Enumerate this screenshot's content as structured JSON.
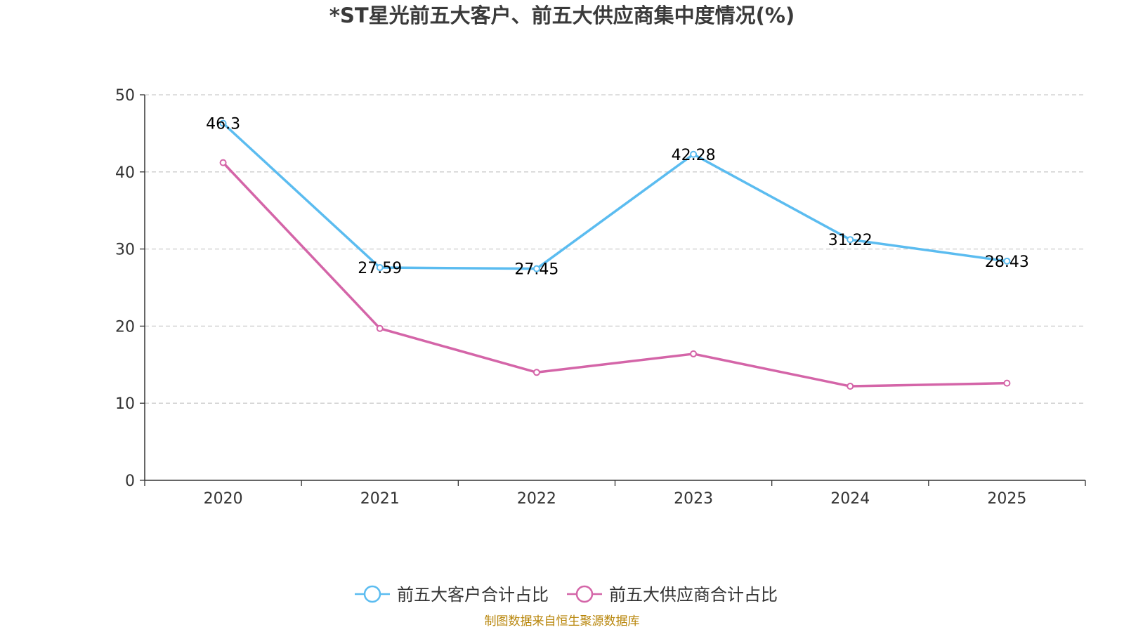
{
  "chart_data": {
    "type": "line",
    "title": "*ST星光前五大客户、前五大供应商集中度情况(%)",
    "categories": [
      "2020",
      "2021",
      "2022",
      "2023",
      "2024",
      "2025"
    ],
    "ylim": [
      0,
      50
    ],
    "yticks": [
      0,
      10,
      20,
      30,
      40,
      50
    ],
    "grid": true,
    "legend_position": "bottom-center",
    "series": [
      {
        "name": "前五大客户合计占比",
        "color": "#5bbcf0",
        "values": [
          46.3,
          27.59,
          27.45,
          42.28,
          31.22,
          28.43
        ],
        "labels": [
          "46.3",
          "27.59",
          "27.45",
          "42.28",
          "31.22",
          "28.43"
        ],
        "show_labels": true
      },
      {
        "name": "前五大供应商合计占比",
        "color": "#d465a8",
        "values": [
          41.2,
          19.7,
          14.0,
          16.4,
          12.2,
          12.6
        ],
        "show_labels": false
      }
    ],
    "source": "制图数据来自恒生聚源数据库"
  }
}
